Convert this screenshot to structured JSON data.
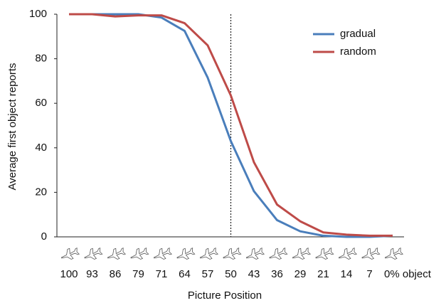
{
  "chart_data": {
    "type": "line",
    "x_label": "Picture Position",
    "y_label": "Average first object reports",
    "categories": [
      "100",
      "93",
      "86",
      "79",
      "71",
      "64",
      "57",
      "50",
      "43",
      "36",
      "29",
      "21",
      "14",
      "7",
      "0% object"
    ],
    "series": [
      {
        "name": "gradual",
        "color": "#4a7ebb",
        "values": [
          100,
          100,
          100,
          100,
          98.5,
          92.5,
          71.5,
          43,
          20.5,
          7.5,
          2.5,
          0.5,
          0,
          0,
          0.5
        ]
      },
      {
        "name": "random",
        "color": "#be4b48",
        "values": [
          100,
          100,
          99,
          99.5,
          99.5,
          96,
          86,
          63.5,
          33.5,
          14.5,
          7,
          2,
          1,
          0.5,
          0.5
        ]
      }
    ],
    "ylim": [
      0,
      100
    ],
    "yticks": [
      0,
      20,
      40,
      60,
      80,
      100
    ],
    "reference_line_category": "50",
    "legend": "upper right",
    "grid": false
  }
}
